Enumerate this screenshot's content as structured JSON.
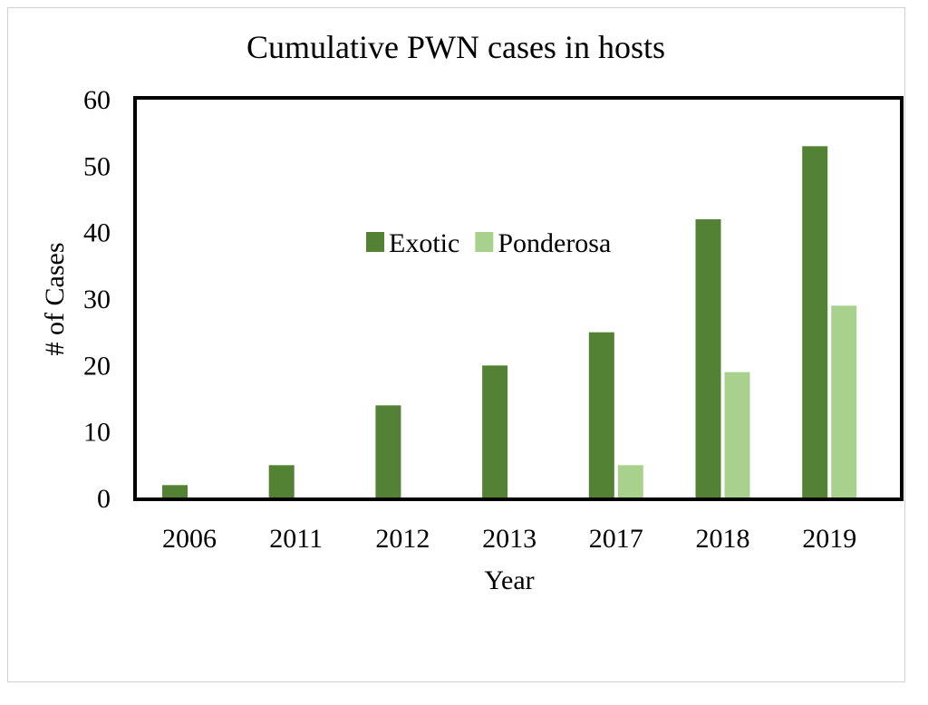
{
  "chart_data": {
    "type": "bar",
    "title": "Cumulative PWN cases in hosts",
    "xlabel": "Year",
    "ylabel": "# of Cases",
    "categories": [
      "2006",
      "2011",
      "2012",
      "2013",
      "2017",
      "2018",
      "2019"
    ],
    "series": [
      {
        "name": "Exotic",
        "color": "#548235",
        "values": [
          2,
          5,
          14,
          20,
          25,
          42,
          53
        ]
      },
      {
        "name": "Ponderosa",
        "color": "#A9D18E",
        "values": [
          0,
          0,
          0,
          0,
          5,
          19,
          29
        ]
      }
    ],
    "ylim": [
      0,
      60
    ],
    "yticks": [
      "0",
      "10",
      "20",
      "30",
      "40",
      "50",
      "60"
    ],
    "grid": false,
    "legend": "center"
  }
}
